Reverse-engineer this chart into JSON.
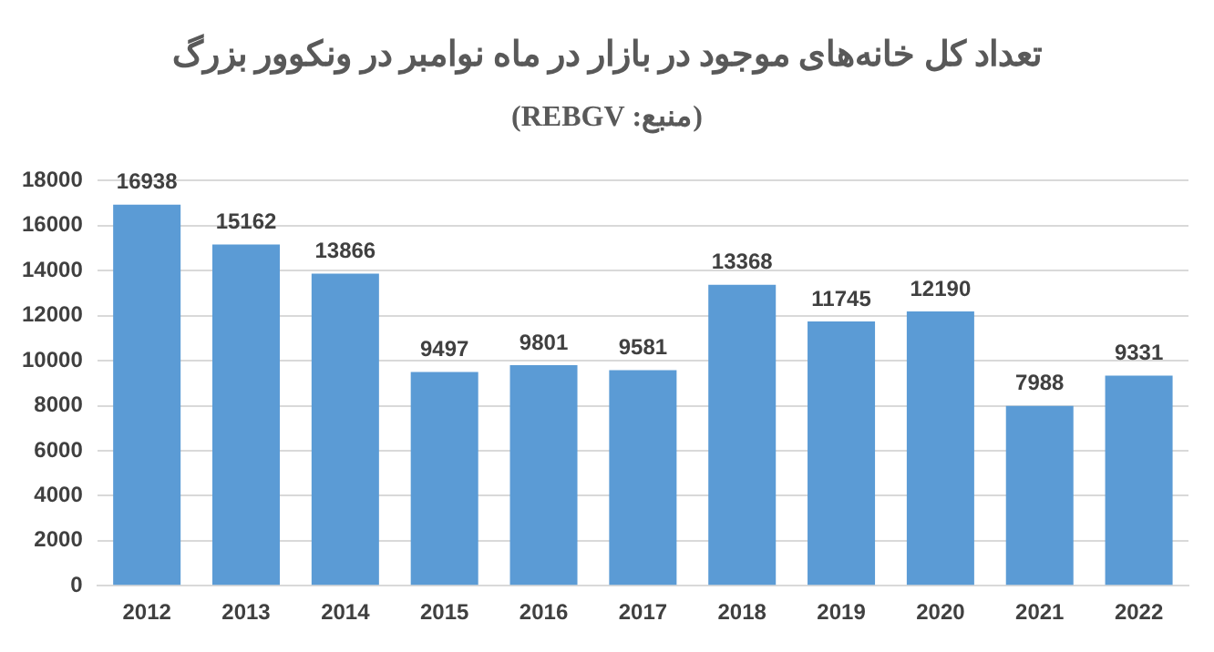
{
  "chart_data": {
    "type": "bar",
    "title": "تعداد کل خانه‌های موجود در بازار در ماه نوامبر در ونکوور بزرگ",
    "subtitle": "(منبع: REBGV)",
    "categories": [
      "2012",
      "2013",
      "2014",
      "2015",
      "2016",
      "2017",
      "2018",
      "2019",
      "2020",
      "2021",
      "2022"
    ],
    "values": [
      16938,
      15162,
      13866,
      9497,
      9801,
      9581,
      13368,
      11745,
      12190,
      7988,
      9331
    ],
    "color": "#5b9bd5",
    "ylim": [
      0,
      18000
    ],
    "yticks": [
      0,
      2000,
      4000,
      6000,
      8000,
      10000,
      12000,
      14000,
      16000,
      18000
    ],
    "grid": "y",
    "data_labels": true,
    "legend": false
  }
}
